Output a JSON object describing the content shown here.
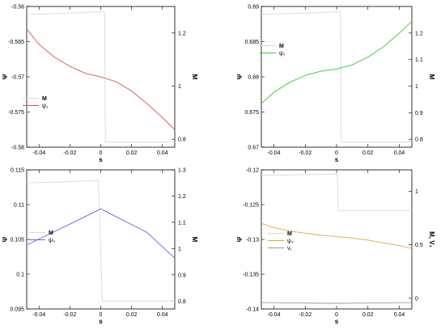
{
  "chart_data": [
    {
      "type": "line",
      "xlabel": "s",
      "ylabel_left": "Ψ",
      "ylabel_right": "M",
      "xlim": [
        -0.048,
        0.048
      ],
      "ylim_left": [
        -0.58,
        -0.56
      ],
      "ylim_right": [
        0.77,
        1.3
      ],
      "x_ticks": [
        -0.04,
        -0.02,
        0,
        0.02,
        0.04
      ],
      "x_tick_labels": [
        "-0.04",
        "-0.02",
        "0",
        "0.02",
        "0.04"
      ],
      "y_left_ticks": [
        -0.58,
        -0.575,
        -0.57,
        -0.565,
        -0.56
      ],
      "y_left_tick_labels": [
        "-0.58",
        "-0.575",
        "-0.57",
        "-0.565",
        "-0.56"
      ],
      "y_right_ticks": [
        0.8,
        1.0,
        1.2
      ],
      "y_right_tick_labels": [
        "0.8",
        "1",
        "1.2"
      ],
      "legend": {
        "placement": "center-left",
        "entries": [
          "M",
          "ψ₁"
        ]
      },
      "series": [
        {
          "name": "M",
          "axis": "right",
          "color": "#d8d8d8",
          "x": [
            -0.048,
            -0.02,
            0,
            0.0025,
            0.003,
            0.048
          ],
          "y": [
            1.27,
            1.275,
            1.28,
            1.28,
            0.79,
            0.79
          ]
        },
        {
          "name": "ψ₁",
          "axis": "left",
          "color": "#d9534f",
          "x": [
            -0.048,
            -0.04,
            -0.03,
            -0.02,
            -0.01,
            0,
            0.01,
            0.02,
            0.03,
            0.04,
            0.048
          ],
          "y": [
            -0.5632,
            -0.5654,
            -0.5672,
            -0.5685,
            -0.5695,
            -0.57,
            -0.5707,
            -0.572,
            -0.5738,
            -0.5758,
            -0.5775
          ]
        }
      ]
    },
    {
      "type": "line",
      "xlabel": "s",
      "ylabel_left": "Ψ",
      "ylabel_right": "M",
      "xlim": [
        -0.048,
        0.048
      ],
      "ylim_left": [
        0.67,
        0.69
      ],
      "ylim_right": [
        0.77,
        1.3
      ],
      "x_ticks": [
        -0.04,
        -0.02,
        0,
        0.02,
        0.04
      ],
      "x_tick_labels": [
        "-0.04",
        "-0.02",
        "0",
        "0.02",
        "0.04"
      ],
      "y_left_ticks": [
        0.67,
        0.675,
        0.68,
        0.685,
        0.69
      ],
      "y_left_tick_labels": [
        "0.67",
        "0.675",
        "0.68",
        "0.685",
        "0.69"
      ],
      "y_right_ticks": [
        0.8,
        0.9,
        1.0,
        1.1,
        1.2
      ],
      "y_right_tick_labels": [
        "0.8",
        "0.9",
        "1",
        "1.1",
        "1.2"
      ],
      "legend": {
        "placement": "top-left",
        "entries": [
          "M",
          "ψ₂"
        ]
      },
      "series": [
        {
          "name": "M",
          "axis": "right",
          "color": "#d8d8d8",
          "x": [
            -0.048,
            -0.02,
            0,
            0.0025,
            0.003,
            0.048
          ],
          "y": [
            1.27,
            1.275,
            1.28,
            1.28,
            0.79,
            0.79
          ]
        },
        {
          "name": "ψ₂",
          "axis": "left",
          "color": "#33cc33",
          "x": [
            -0.048,
            -0.04,
            -0.03,
            -0.02,
            -0.01,
            0,
            0.01,
            0.02,
            0.03,
            0.04,
            0.048
          ],
          "y": [
            0.6762,
            0.6778,
            0.6792,
            0.6802,
            0.6808,
            0.6811,
            0.6817,
            0.6828,
            0.6843,
            0.6862,
            0.6879
          ]
        }
      ]
    },
    {
      "type": "line",
      "xlabel": "s",
      "ylabel_left": "Ψ",
      "ylabel_right": "M",
      "xlim": [
        -0.048,
        0.048
      ],
      "ylim_left": [
        0.095,
        0.115
      ],
      "ylim_right": [
        0.77,
        1.3
      ],
      "x_ticks": [
        -0.04,
        -0.02,
        0,
        0.02,
        0.04
      ],
      "x_tick_labels": [
        "-0.04",
        "-0.02",
        "0",
        "0.02",
        "0.04"
      ],
      "y_left_ticks": [
        0.095,
        0.1,
        0.105,
        0.11,
        0.115
      ],
      "y_left_tick_labels": [
        "0.095",
        "0.1",
        "0.105",
        "0.11",
        "0.115"
      ],
      "y_right_ticks": [
        0.8,
        0.9,
        1.0,
        1.1,
        1.2,
        1.3
      ],
      "y_right_tick_labels": [
        "0.8",
        "0.9",
        "1",
        "1.1",
        "1.2",
        "1.3"
      ],
      "legend": {
        "placement": "bottom-center",
        "entries": [
          "M",
          "ψ₃"
        ]
      },
      "series": [
        {
          "name": "M",
          "axis": "right",
          "color": "#d8d8d8",
          "x": [
            -0.048,
            -0.02,
            -0.002,
            -0.0015,
            0.001,
            0.048
          ],
          "y": [
            1.25,
            1.255,
            1.26,
            1.26,
            0.8,
            0.8
          ]
        },
        {
          "name": "ψ₃",
          "axis": "left",
          "color": "#6666ee",
          "x": [
            -0.048,
            -0.02,
            0,
            0.03,
            0.048
          ],
          "y": [
            0.1042,
            0.1072,
            0.1094,
            0.106,
            0.1023
          ]
        }
      ]
    },
    {
      "type": "line",
      "xlabel": "s",
      "ylabel_left": "Ψ",
      "ylabel_right": "M, V₁",
      "xlim": [
        -0.048,
        0.048
      ],
      "ylim_left": [
        -0.14,
        -0.12
      ],
      "ylim_right": [
        -0.1,
        1.2
      ],
      "x_ticks": [
        -0.04,
        -0.02,
        0,
        0.02,
        0.04
      ],
      "x_tick_labels": [
        "-0.04",
        "-0.02",
        "0",
        "0.02",
        "0.04"
      ],
      "y_left_ticks": [
        -0.14,
        -0.135,
        -0.13,
        -0.125,
        -0.12
      ],
      "y_left_tick_labels": [
        "-0.14",
        "-0.135",
        "-0.13",
        "-0.125",
        "-0.12"
      ],
      "y_right_ticks": [
        0,
        0.5,
        1.0
      ],
      "y_right_tick_labels": [
        "0",
        "0.5",
        "1"
      ],
      "legend": {
        "placement": "bottom-center",
        "entries": [
          "M",
          "ψ₄",
          "v₁"
        ]
      },
      "series": [
        {
          "name": "M",
          "axis": "right",
          "color": "#d8d8d8",
          "x": [
            -0.048,
            -0.02,
            0,
            0.0005,
            0.001,
            0.048
          ],
          "y": [
            1.15,
            1.155,
            1.16,
            1.16,
            0.82,
            0.82
          ]
        },
        {
          "name": "ψ₄",
          "axis": "left",
          "color": "#f0a040",
          "x": [
            -0.048,
            -0.04,
            -0.03,
            -0.02,
            -0.01,
            0,
            0.01,
            0.02,
            0.03,
            0.04,
            0.048
          ],
          "y": [
            -0.1277,
            -0.1283,
            -0.1288,
            -0.1291,
            -0.1294,
            -0.1296,
            -0.1298,
            -0.1301,
            -0.1305,
            -0.1309,
            -0.1313
          ]
        },
        {
          "name": "v₁",
          "axis": "right",
          "color": "#999999",
          "x": [
            -0.048,
            -0.02,
            0,
            0.02,
            0.048
          ],
          "y": [
            -0.04,
            -0.045,
            -0.047,
            -0.045,
            -0.04
          ]
        }
      ]
    }
  ]
}
